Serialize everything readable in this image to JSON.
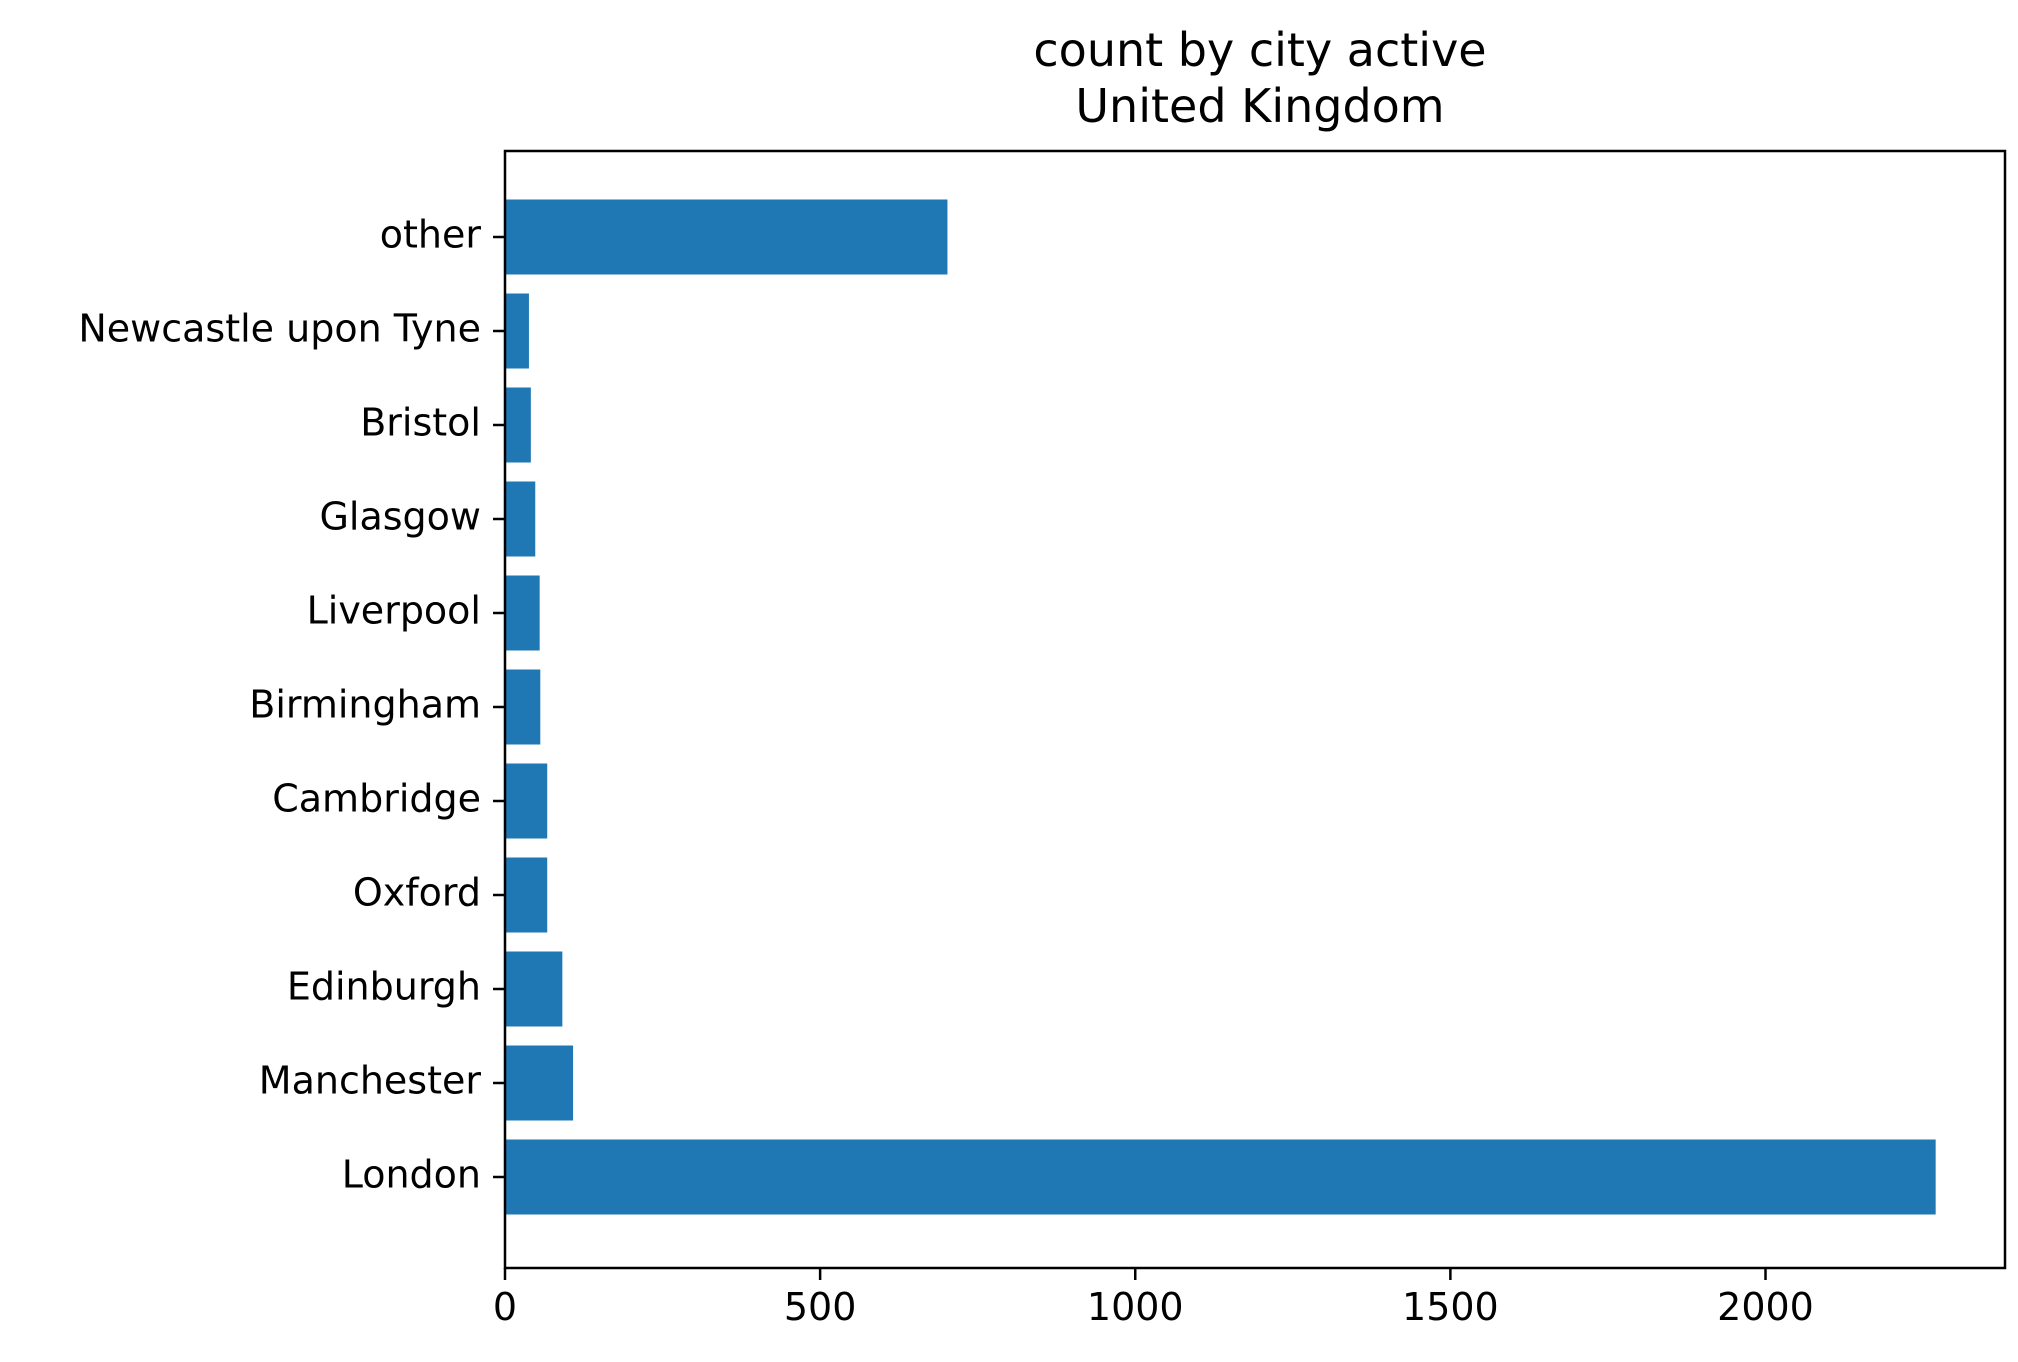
{
  "chart_data": {
    "type": "bar",
    "orientation": "horizontal",
    "title": "count by city active",
    "subtitle": "United Kingdom",
    "xlabel": "",
    "ylabel": "",
    "xlim": [
      0,
      2380
    ],
    "xticks": [
      "0",
      "500",
      "1000",
      "1500",
      "2000"
    ],
    "xtick_values": [
      0,
      500,
      1000,
      1500,
      2000
    ],
    "categories": [
      "London",
      "Manchester",
      "Edinburgh",
      "Oxford",
      "Cambridge",
      "Birmingham",
      "Liverpool",
      "Glasgow",
      "Bristol",
      "Newcastle upon Tyne",
      "other"
    ],
    "values": [
      2270,
      108,
      91,
      67,
      67,
      56,
      55,
      48,
      41,
      38,
      702
    ],
    "bar_color": "#1f77b4",
    "grid": false,
    "legend": "none"
  }
}
